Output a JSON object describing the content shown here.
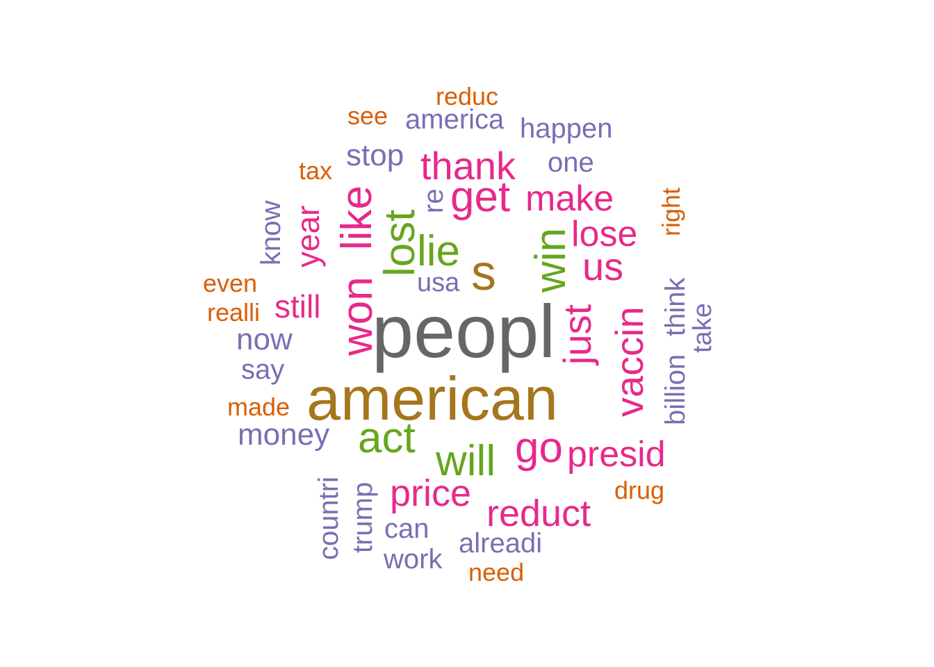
{
  "palette": {
    "dark_gray": "#666666",
    "brown": "#a6761d",
    "green": "#66a61e",
    "magenta": "#e7298a",
    "purple": "#7570b3",
    "orange": "#d95f02"
  },
  "words": [
    {
      "text": "peopl",
      "color": "#666666",
      "rotated": false
    },
    {
      "text": "american",
      "color": "#a6761d",
      "rotated": false
    },
    {
      "text": "s",
      "color": "#a6761d",
      "rotated": false
    },
    {
      "text": "won",
      "color": "#e7298a",
      "rotated": true
    },
    {
      "text": "like",
      "color": "#e7298a",
      "rotated": true
    },
    {
      "text": "lost",
      "color": "#66a61e",
      "rotated": true
    },
    {
      "text": "lie",
      "color": "#66a61e",
      "rotated": false
    },
    {
      "text": "win",
      "color": "#66a61e",
      "rotated": true
    },
    {
      "text": "act",
      "color": "#66a61e",
      "rotated": false
    },
    {
      "text": "will",
      "color": "#66a61e",
      "rotated": false
    },
    {
      "text": "go",
      "color": "#e7298a",
      "rotated": false
    },
    {
      "text": "get",
      "color": "#e7298a",
      "rotated": false
    },
    {
      "text": "thank",
      "color": "#e7298a",
      "rotated": false
    },
    {
      "text": "make",
      "color": "#e7298a",
      "rotated": false
    },
    {
      "text": "lose",
      "color": "#e7298a",
      "rotated": false
    },
    {
      "text": "us",
      "color": "#e7298a",
      "rotated": false
    },
    {
      "text": "just",
      "color": "#e7298a",
      "rotated": true
    },
    {
      "text": "vaccin",
      "color": "#e7298a",
      "rotated": true
    },
    {
      "text": "presid",
      "color": "#e7298a",
      "rotated": false
    },
    {
      "text": "price",
      "color": "#e7298a",
      "rotated": false
    },
    {
      "text": "reduct",
      "color": "#e7298a",
      "rotated": false
    },
    {
      "text": "still",
      "color": "#e7298a",
      "rotated": false
    },
    {
      "text": "year",
      "color": "#e7298a",
      "rotated": true
    },
    {
      "text": "stop",
      "color": "#7570b3",
      "rotated": false
    },
    {
      "text": "now",
      "color": "#7570b3",
      "rotated": false
    },
    {
      "text": "money",
      "color": "#7570b3",
      "rotated": false
    },
    {
      "text": "can",
      "color": "#7570b3",
      "rotated": false
    },
    {
      "text": "work",
      "color": "#7570b3",
      "rotated": false
    },
    {
      "text": "alreadi",
      "color": "#7570b3",
      "rotated": false
    },
    {
      "text": "america",
      "color": "#7570b3",
      "rotated": false
    },
    {
      "text": "happen",
      "color": "#7570b3",
      "rotated": false
    },
    {
      "text": "one",
      "color": "#7570b3",
      "rotated": false
    },
    {
      "text": "say",
      "color": "#7570b3",
      "rotated": false
    },
    {
      "text": "usa",
      "color": "#7570b3",
      "rotated": false
    },
    {
      "text": "know",
      "color": "#7570b3",
      "rotated": true
    },
    {
      "text": "countri",
      "color": "#7570b3",
      "rotated": true
    },
    {
      "text": "trump",
      "color": "#7570b3",
      "rotated": true
    },
    {
      "text": "billion",
      "color": "#7570b3",
      "rotated": true
    },
    {
      "text": "think",
      "color": "#7570b3",
      "rotated": true
    },
    {
      "text": "take",
      "color": "#7570b3",
      "rotated": true
    },
    {
      "text": "re",
      "color": "#7570b3",
      "rotated": true
    },
    {
      "text": "reduc",
      "color": "#d95f02",
      "rotated": false
    },
    {
      "text": "see",
      "color": "#d95f02",
      "rotated": false
    },
    {
      "text": "tax",
      "color": "#d95f02",
      "rotated": false
    },
    {
      "text": "even",
      "color": "#d95f02",
      "rotated": false
    },
    {
      "text": "realli",
      "color": "#d95f02",
      "rotated": false
    },
    {
      "text": "made",
      "color": "#d95f02",
      "rotated": false
    },
    {
      "text": "drug",
      "color": "#d95f02",
      "rotated": false
    },
    {
      "text": "need",
      "color": "#d95f02",
      "rotated": false
    },
    {
      "text": "right",
      "color": "#d95f02",
      "rotated": true
    }
  ]
}
